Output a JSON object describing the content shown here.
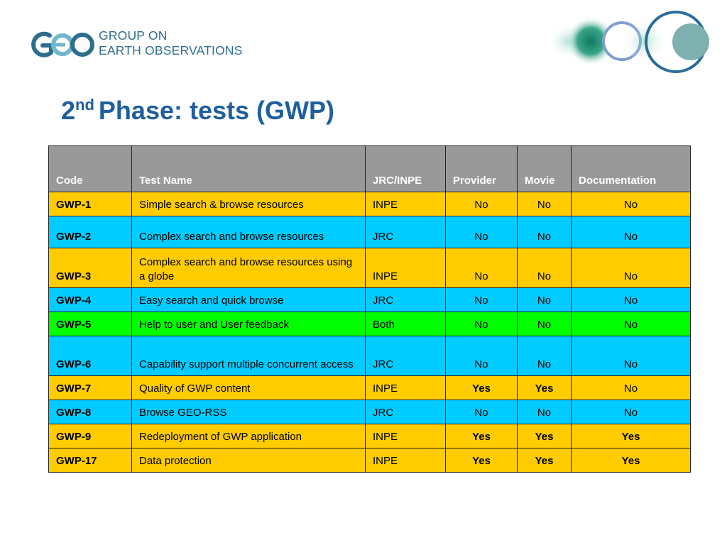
{
  "logo": {
    "mark": "GEO",
    "line1": "GROUP ON",
    "line2": "EARTH OBSERVATIONS"
  },
  "title": {
    "number": "2",
    "ordinal": "nd",
    "text": "Phase: tests (GWP)"
  },
  "colors": {
    "yellow": "#ffcc00",
    "cyan": "#00ccff",
    "green": "#00ff00",
    "header": "#999999",
    "title": "#1f5f9f"
  },
  "table": {
    "headers": [
      "Code",
      "Test Name",
      "JRC/INPE",
      "Provider",
      "Movie",
      "Documentation"
    ],
    "rows": [
      {
        "color": "yellow",
        "code": "GWP-1",
        "name": "Simple search & browse resources",
        "org": "INPE",
        "provider": "No",
        "movie": "No",
        "documentation": "No"
      },
      {
        "color": "cyan",
        "code": "GWP-2",
        "name": "Complex search and browse resources",
        "org": "JRC",
        "provider": "No",
        "movie": "No",
        "documentation": "No"
      },
      {
        "color": "yellow",
        "code": "GWP-3",
        "name": "Complex search and browse resources using a globe",
        "org": "INPE",
        "provider": "No",
        "movie": "No",
        "documentation": "No"
      },
      {
        "color": "cyan",
        "code": "GWP-4",
        "name": "Easy search and quick browse",
        "org": "JRC",
        "provider": "No",
        "movie": "No",
        "documentation": "No"
      },
      {
        "color": "green",
        "code": "GWP-5",
        "name": "Help to user and User feedback",
        "org": "Both",
        "provider": "No",
        "movie": "No",
        "documentation": "No"
      },
      {
        "color": "cyan",
        "code": "GWP-6",
        "name": "Capability support multiple concurrent access",
        "org": "JRC",
        "provider": "No",
        "movie": "No",
        "documentation": "No"
      },
      {
        "color": "yellow",
        "code": "GWP-7",
        "name": "Quality of GWP content",
        "org": "INPE",
        "provider": "Yes",
        "movie": "Yes",
        "documentation": "No"
      },
      {
        "color": "cyan",
        "code": "GWP-8",
        "name": "Browse GEO-RSS",
        "org": "JRC",
        "provider": "No",
        "movie": "No",
        "documentation": "No"
      },
      {
        "color": "yellow",
        "code": "GWP-9",
        "name": "Redeployment of GWP application",
        "org": "INPE",
        "provider": "Yes",
        "movie": "Yes",
        "documentation": "Yes"
      },
      {
        "color": "yellow",
        "code": "GWP-17",
        "name": "Data protection",
        "org": "INPE",
        "provider": "Yes",
        "movie": "Yes",
        "documentation": "Yes"
      }
    ]
  }
}
